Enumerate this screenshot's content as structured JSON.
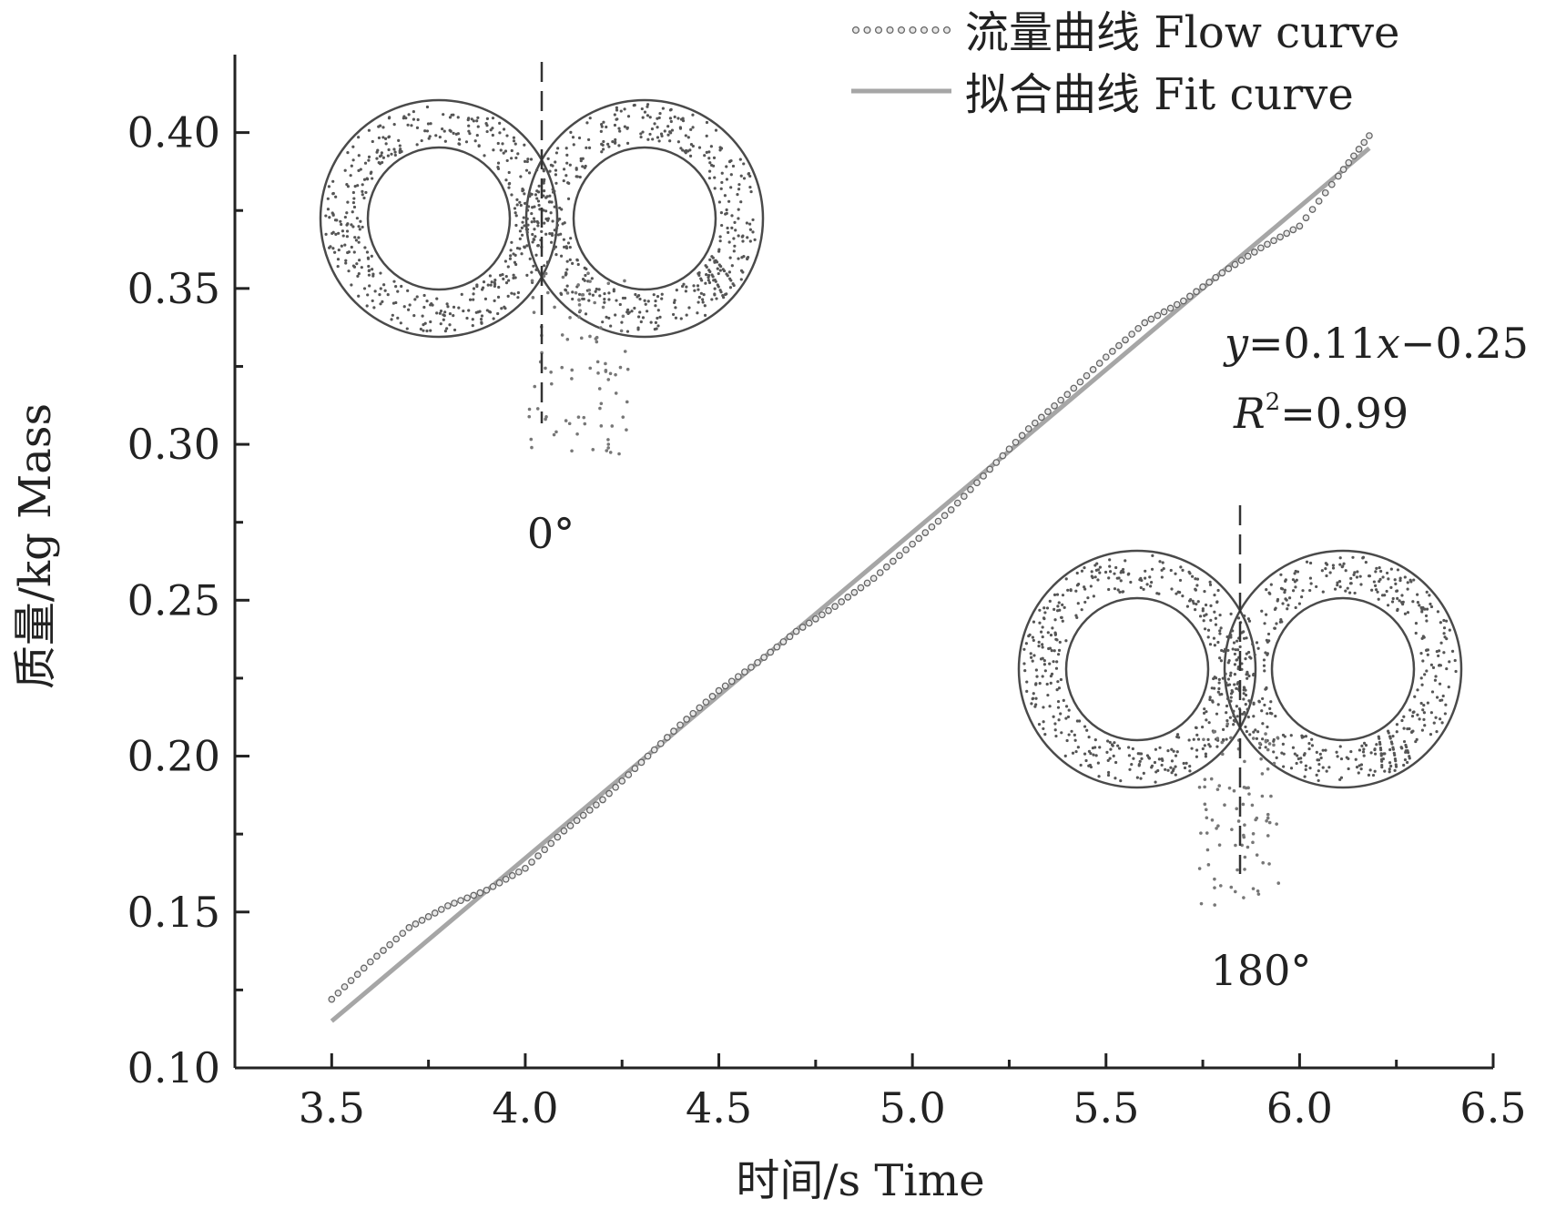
{
  "chart_data": {
    "type": "line",
    "xlabel": "时间/s Time",
    "ylabel": "质量/kg Mass",
    "xlim": [
      3.25,
      6.5
    ],
    "ylim": [
      0.1,
      0.425
    ],
    "x_ticks": [
      3.5,
      4.0,
      4.5,
      5.0,
      5.5,
      6.0,
      6.5
    ],
    "x_tick_labels": [
      "3.5",
      "4.0",
      "4.5",
      "5.0",
      "5.5",
      "6.0",
      "6.5"
    ],
    "y_ticks": [
      0.1,
      0.15,
      0.2,
      0.25,
      0.3,
      0.35,
      0.4
    ],
    "y_tick_labels": [
      "0.10",
      "0.15",
      "0.20",
      "0.25",
      "0.30",
      "0.35",
      "0.40"
    ],
    "grid": false,
    "legend_position": "top-right",
    "series": [
      {
        "name": "流量曲线 Flow curve",
        "style": "dotted-markers",
        "color": "#777777",
        "x": [
          3.5,
          3.6,
          3.7,
          3.8,
          3.9,
          4.0,
          4.1,
          4.2,
          4.3,
          4.4,
          4.5,
          4.6,
          4.7,
          4.8,
          4.9,
          5.0,
          5.1,
          5.2,
          5.3,
          5.4,
          5.5,
          5.6,
          5.7,
          5.8,
          5.9,
          6.0,
          6.1,
          6.18
        ],
        "y": [
          0.122,
          0.134,
          0.145,
          0.152,
          0.157,
          0.164,
          0.176,
          0.186,
          0.198,
          0.21,
          0.221,
          0.23,
          0.24,
          0.248,
          0.257,
          0.268,
          0.279,
          0.292,
          0.305,
          0.316,
          0.328,
          0.339,
          0.346,
          0.355,
          0.363,
          0.37,
          0.386,
          0.399
        ]
      },
      {
        "name": "拟合曲线 Fit curve",
        "style": "solid",
        "color": "#a6a6a6",
        "x": [
          3.5,
          6.18
        ],
        "y": [
          0.115,
          0.395
        ]
      }
    ],
    "annotations": {
      "equation": {
        "y": "y",
        "expr1": "=0.11",
        "x": "x",
        "expr2": "−0.25"
      },
      "r_squared": {
        "r": "R",
        "sup": "2",
        "expr": "=0.99"
      },
      "inset_top_angle": "0°",
      "inset_bottom_angle": "180°"
    }
  },
  "colors": {
    "axis": "#222222",
    "flow_marker_fill": "#e8e8e8",
    "flow_marker_stroke": "#666666",
    "fit_line": "#a6a6a6",
    "particles": "#555555"
  }
}
